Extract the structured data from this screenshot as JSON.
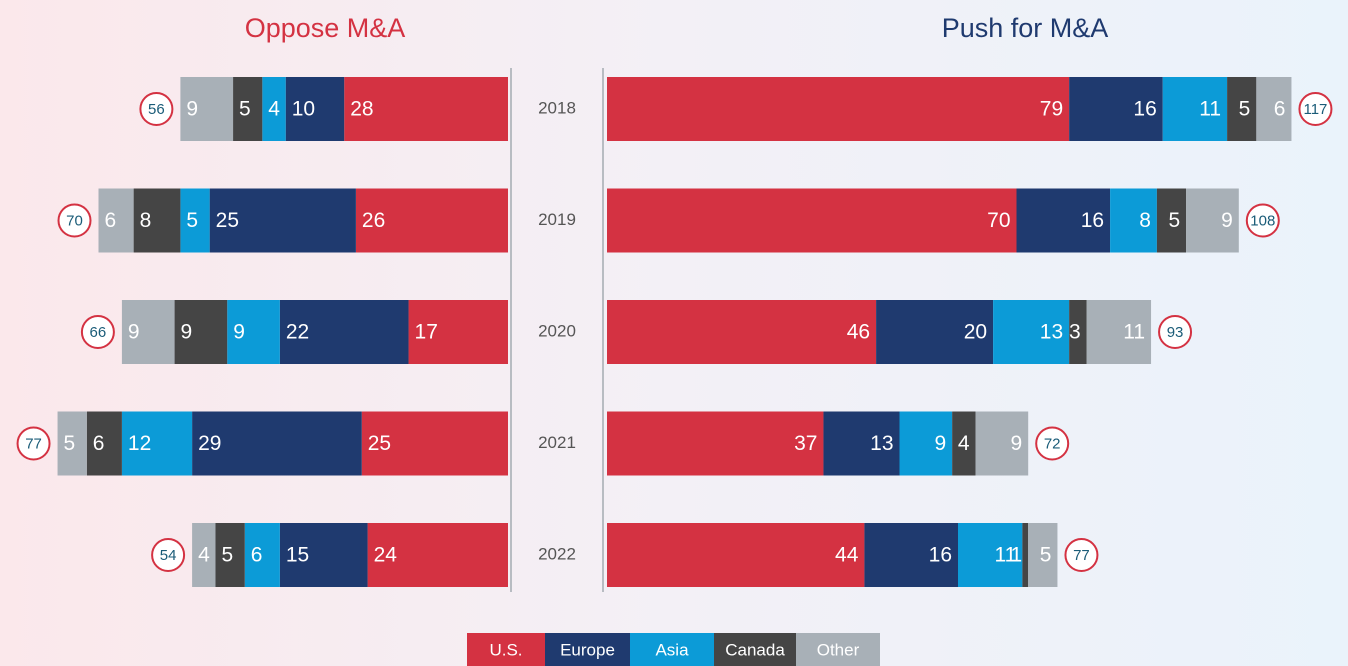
{
  "chart_data": {
    "type": "bar",
    "categories": [
      "2018",
      "2019",
      "2020",
      "2021",
      "2022"
    ],
    "series": [
      {
        "name": "U.S.",
        "color": "#d43242"
      },
      {
        "name": "Europe",
        "color": "#1f3a6f"
      },
      {
        "name": "Asia",
        "color": "#0c9bd7"
      },
      {
        "name": "Canada",
        "color": "#454545"
      },
      {
        "name": "Other",
        "color": "#a8b0b7"
      }
    ],
    "charts": [
      {
        "title": "Oppose M&A",
        "title_color": "#d43242",
        "series": [
          {
            "values": [
              28,
              26,
              17,
              25,
              24
            ]
          },
          {
            "values": [
              10,
              25,
              22,
              29,
              15
            ]
          },
          {
            "values": [
              4,
              5,
              9,
              12,
              6
            ]
          },
          {
            "values": [
              5,
              8,
              9,
              6,
              5
            ]
          },
          {
            "values": [
              9,
              6,
              9,
              5,
              4
            ]
          }
        ],
        "totals": [
          56,
          70,
          66,
          77,
          54
        ]
      },
      {
        "title": "Push for M&A",
        "title_color": "#1f3a6f",
        "series": [
          {
            "values": [
              79,
              70,
              46,
              37,
              44
            ]
          },
          {
            "values": [
              16,
              16,
              20,
              13,
              16
            ]
          },
          {
            "values": [
              11,
              8,
              13,
              9,
              11
            ]
          },
          {
            "values": [
              5,
              5,
              3,
              4,
              1
            ]
          },
          {
            "values": [
              6,
              9,
              11,
              9,
              5
            ]
          }
        ],
        "totals": [
          117,
          108,
          93,
          72,
          77
        ]
      }
    ]
  }
}
